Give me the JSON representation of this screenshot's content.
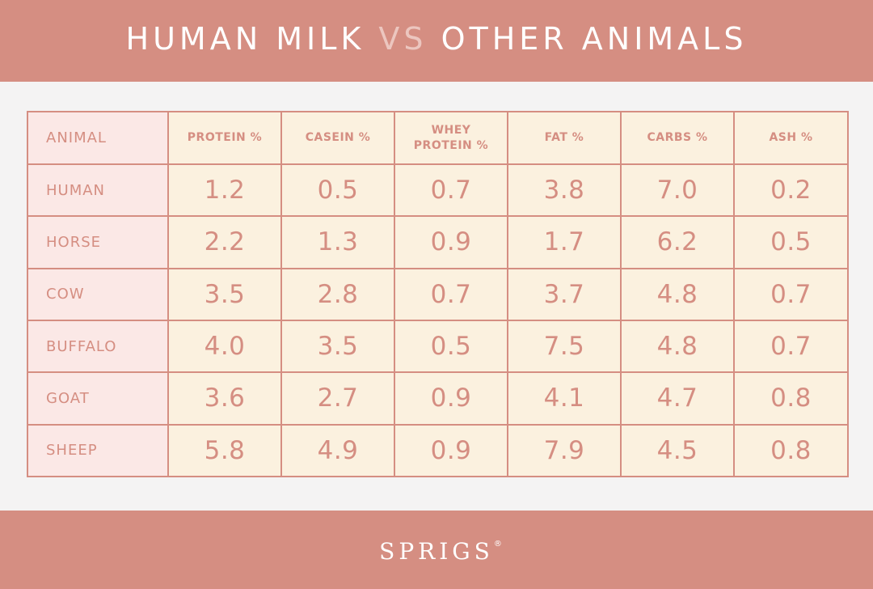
{
  "header": {
    "title_part1": "HUMAN MILK ",
    "title_vs": "VS",
    "title_part2": " OTHER ANIMALS"
  },
  "chart_data": {
    "type": "table",
    "columns": [
      "ANIMAL",
      "PROTEIN %",
      "CASEIN %",
      "WHEY\nPROTEIN %",
      "FAT %",
      "CARBS %",
      "ASH %"
    ],
    "rows": [
      {
        "animal": "HUMAN",
        "values": [
          "1.2",
          "0.5",
          "0.7",
          "3.8",
          "7.0",
          "0.2"
        ]
      },
      {
        "animal": "HORSE",
        "values": [
          "2.2",
          "1.3",
          "0.9",
          "1.7",
          "6.2",
          "0.5"
        ]
      },
      {
        "animal": "COW",
        "values": [
          "3.5",
          "2.8",
          "0.7",
          "3.7",
          "4.8",
          "0.7"
        ]
      },
      {
        "animal": "BUFFALO",
        "values": [
          "4.0",
          "3.5",
          "0.5",
          "7.5",
          "4.8",
          "0.7"
        ]
      },
      {
        "animal": "GOAT",
        "values": [
          "3.6",
          "2.7",
          "0.9",
          "4.1",
          "4.7",
          "0.8"
        ]
      },
      {
        "animal": "SHEEP",
        "values": [
          "5.8",
          "4.9",
          "0.9",
          "7.9",
          "4.5",
          "0.8"
        ]
      }
    ]
  },
  "footer": {
    "brand": "SPRIGS",
    "reg_mark": "®"
  },
  "colors": {
    "accent": "#d58e82",
    "header_vs": "#ecc6bf",
    "cell_background": "#fbf1df",
    "animal_column_background": "#fbe8e6",
    "page_background": "#f4f3f3"
  }
}
